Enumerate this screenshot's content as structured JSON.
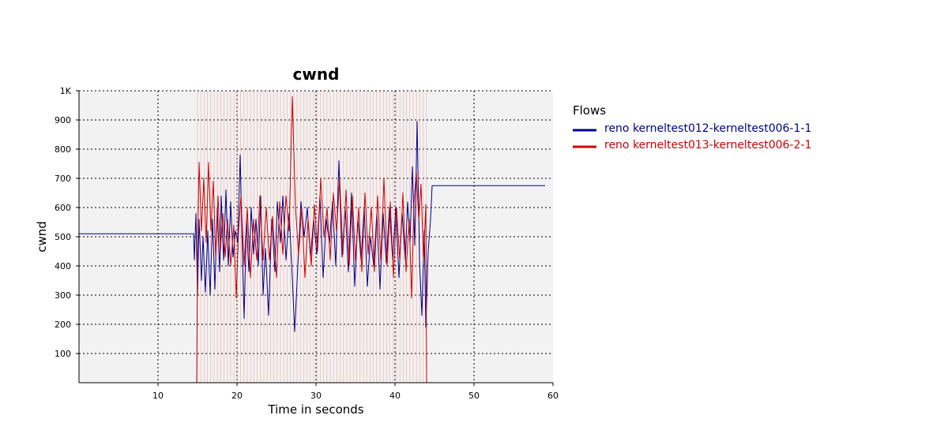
{
  "chart_data": {
    "type": "line",
    "title": "cwnd",
    "xlabel": "Time in seconds",
    "ylabel": "cwnd",
    "xlim": [
      0,
      60
    ],
    "ylim": [
      0,
      1000
    ],
    "x_ticks": [
      10,
      20,
      30,
      40,
      50,
      60
    ],
    "y_ticks": [
      100,
      200,
      300,
      400,
      500,
      600,
      700,
      800,
      900,
      1000
    ],
    "y_tick_labels": [
      "100",
      "200",
      "300",
      "400",
      "500",
      "600",
      "700",
      "800",
      "900",
      "1K"
    ],
    "grid": true,
    "legend": {
      "title": "Flows",
      "placement": "right"
    },
    "series": [
      {
        "name": "reno kerneltest012-kerneltest006-1-1",
        "color": "#00008b",
        "points": [
          [
            0,
            510
          ],
          [
            14.5,
            510
          ],
          [
            14.6,
            420
          ],
          [
            14.8,
            580
          ],
          [
            15.0,
            300
          ],
          [
            15.2,
            560
          ],
          [
            15.5,
            350
          ],
          [
            15.7,
            500
          ],
          [
            16.0,
            310
          ],
          [
            16.3,
            520
          ],
          [
            16.6,
            300
          ],
          [
            16.9,
            560
          ],
          [
            17.2,
            320
          ],
          [
            17.5,
            600
          ],
          [
            17.8,
            380
          ],
          [
            18.0,
            640
          ],
          [
            18.3,
            420
          ],
          [
            18.6,
            660
          ],
          [
            18.9,
            400
          ],
          [
            19.2,
            620
          ],
          [
            19.5,
            430
          ],
          [
            19.8,
            520
          ],
          [
            20.1,
            480
          ],
          [
            20.4,
            780
          ],
          [
            20.7,
            420
          ],
          [
            20.9,
            220
          ],
          [
            21.2,
            560
          ],
          [
            21.5,
            380
          ],
          [
            21.8,
            600
          ],
          [
            22.1,
            440
          ],
          [
            22.4,
            560
          ],
          [
            22.7,
            400
          ],
          [
            23.0,
            640
          ],
          [
            23.3,
            300
          ],
          [
            23.6,
            460
          ],
          [
            24.0,
            230
          ],
          [
            24.4,
            560
          ],
          [
            24.8,
            380
          ],
          [
            25.1,
            620
          ],
          [
            25.5,
            480
          ],
          [
            25.8,
            640
          ],
          [
            26.2,
            420
          ],
          [
            26.6,
            580
          ],
          [
            27.0,
            360
          ],
          [
            27.3,
            175
          ],
          [
            27.7,
            400
          ],
          [
            28.1,
            620
          ],
          [
            28.5,
            500
          ],
          [
            28.9,
            600
          ],
          [
            29.3,
            430
          ],
          [
            29.7,
            560
          ],
          [
            30.1,
            440
          ],
          [
            30.5,
            640
          ],
          [
            30.9,
            360
          ],
          [
            31.3,
            560
          ],
          [
            31.7,
            480
          ],
          [
            32.1,
            620
          ],
          [
            32.5,
            400
          ],
          [
            32.9,
            760
          ],
          [
            33.3,
            430
          ],
          [
            33.7,
            600
          ],
          [
            34.1,
            380
          ],
          [
            34.5,
            650
          ],
          [
            34.9,
            330
          ],
          [
            35.3,
            560
          ],
          [
            35.7,
            420
          ],
          [
            36.1,
            600
          ],
          [
            36.5,
            330
          ],
          [
            36.9,
            500
          ],
          [
            37.3,
            400
          ],
          [
            37.7,
            580
          ],
          [
            38.1,
            320
          ],
          [
            38.5,
            580
          ],
          [
            38.9,
            410
          ],
          [
            39.3,
            600
          ],
          [
            39.7,
            420
          ],
          [
            40.1,
            600
          ],
          [
            40.5,
            360
          ],
          [
            40.9,
            580
          ],
          [
            41.3,
            420
          ],
          [
            41.6,
            620
          ],
          [
            41.9,
            480
          ],
          [
            42.2,
            740
          ],
          [
            42.5,
            470
          ],
          [
            42.8,
            895
          ],
          [
            43.1,
            420
          ],
          [
            43.4,
            230
          ],
          [
            43.7,
            520
          ],
          [
            43.9,
            190
          ],
          [
            44.2,
            450
          ],
          [
            44.5,
            560
          ],
          [
            44.7,
            675
          ],
          [
            59,
            675
          ]
        ]
      },
      {
        "name": "reno kerneltest013-kerneltest006-2-1",
        "color": "#cc0000",
        "points": [
          [
            0,
            0
          ],
          [
            14.9,
            0
          ],
          [
            15.0,
            460
          ],
          [
            15.2,
            755
          ],
          [
            15.5,
            520
          ],
          [
            15.8,
            700
          ],
          [
            16.1,
            480
          ],
          [
            16.4,
            755
          ],
          [
            16.7,
            520
          ],
          [
            17.0,
            690
          ],
          [
            17.3,
            430
          ],
          [
            17.6,
            640
          ],
          [
            17.9,
            450
          ],
          [
            18.2,
            580
          ],
          [
            18.5,
            430
          ],
          [
            18.8,
            560
          ],
          [
            19.2,
            400
          ],
          [
            19.6,
            540
          ],
          [
            19.9,
            290
          ],
          [
            20.2,
            520
          ],
          [
            20.5,
            640
          ],
          [
            20.9,
            400
          ],
          [
            21.3,
            600
          ],
          [
            21.7,
            360
          ],
          [
            22.1,
            560
          ],
          [
            22.5,
            420
          ],
          [
            22.9,
            640
          ],
          [
            23.3,
            420
          ],
          [
            23.7,
            600
          ],
          [
            24.1,
            420
          ],
          [
            24.5,
            570
          ],
          [
            25.0,
            360
          ],
          [
            25.4,
            620
          ],
          [
            25.8,
            440
          ],
          [
            26.2,
            640
          ],
          [
            26.6,
            520
          ],
          [
            27.0,
            980
          ],
          [
            27.4,
            600
          ],
          [
            27.8,
            440
          ],
          [
            28.2,
            600
          ],
          [
            28.6,
            360
          ],
          [
            29.0,
            560
          ],
          [
            29.4,
            400
          ],
          [
            29.8,
            610
          ],
          [
            30.2,
            450
          ],
          [
            30.6,
            700
          ],
          [
            31.0,
            500
          ],
          [
            31.4,
            600
          ],
          [
            31.8,
            420
          ],
          [
            32.2,
            650
          ],
          [
            32.6,
            520
          ],
          [
            33.0,
            700
          ],
          [
            33.4,
            440
          ],
          [
            33.8,
            660
          ],
          [
            34.2,
            400
          ],
          [
            34.6,
            640
          ],
          [
            35.0,
            420
          ],
          [
            35.4,
            600
          ],
          [
            35.8,
            380
          ],
          [
            36.2,
            650
          ],
          [
            36.6,
            440
          ],
          [
            37.0,
            600
          ],
          [
            37.4,
            380
          ],
          [
            37.8,
            640
          ],
          [
            38.2,
            420
          ],
          [
            38.6,
            700
          ],
          [
            39.0,
            400
          ],
          [
            39.4,
            620
          ],
          [
            39.8,
            360
          ],
          [
            40.2,
            600
          ],
          [
            40.6,
            420
          ],
          [
            41.0,
            650
          ],
          [
            41.4,
            380
          ],
          [
            41.8,
            560
          ],
          [
            42.1,
            290
          ],
          [
            42.4,
            620
          ],
          [
            42.7,
            720
          ],
          [
            43.0,
            560
          ],
          [
            43.3,
            680
          ],
          [
            43.6,
            420
          ],
          [
            43.9,
            610
          ],
          [
            44.0,
            0
          ],
          [
            44.1,
            0
          ]
        ]
      }
    ]
  }
}
